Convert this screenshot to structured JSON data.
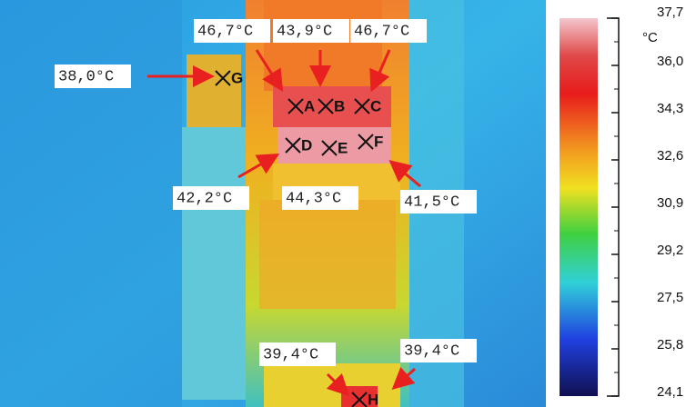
{
  "annotations": [
    {
      "label": "46,7°C"
    },
    {
      "label": "43,9°C"
    },
    {
      "label": "46,7°C"
    },
    {
      "label": "38,0°C"
    },
    {
      "label": "42,2°C"
    },
    {
      "label": "44,3°C"
    },
    {
      "label": "41,5°C"
    },
    {
      "label": "39,4°C"
    },
    {
      "label": "39,4°C"
    }
  ],
  "markers": [
    "A",
    "B",
    "C",
    "D",
    "E",
    "F",
    "G",
    "H"
  ],
  "scale": {
    "unit": "°C",
    "ticks": [
      "37,7",
      "36,0",
      "34,3",
      "32,6",
      "30,9",
      "29,2",
      "27,5",
      "25,8",
      "24,1"
    ]
  }
}
